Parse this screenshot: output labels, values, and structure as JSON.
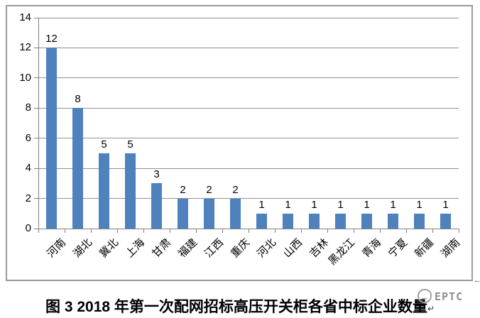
{
  "chart_data": {
    "type": "bar",
    "title": "图 3 2018 年第一次配网招标高压开关柜各省中标企业数量",
    "categories": [
      "河南",
      "湖北",
      "冀北",
      "上海",
      "甘肃",
      "福建",
      "江西",
      "重庆",
      "河北",
      "山西",
      "吉林",
      "黑龙江",
      "青海",
      "宁夏",
      "新疆",
      "湖南"
    ],
    "values": [
      12,
      8,
      5,
      5,
      3,
      2,
      2,
      2,
      1,
      1,
      1,
      1,
      1,
      1,
      1,
      1
    ],
    "ylim": [
      0,
      14
    ],
    "yticks": [
      0,
      2,
      4,
      6,
      8,
      10,
      12,
      14
    ],
    "xlabel": "",
    "ylabel": "",
    "grid": true,
    "legend_position": "none",
    "data_labels_shown": true,
    "bar_color": "#4f81bd",
    "gridline_color": "#909090",
    "axis_color": "#808080",
    "text_color": "#000000"
  },
  "marks": {
    "frame_line_break": "←",
    "caption_line_break": "↵"
  },
  "watermark": {
    "text": "EPTC"
  }
}
